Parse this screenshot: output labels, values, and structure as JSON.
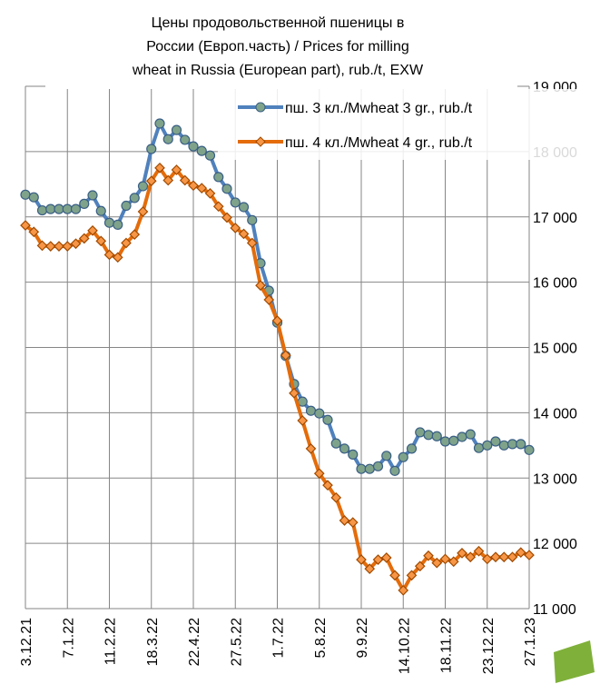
{
  "chart_data": {
    "type": "line",
    "title": [
      "Цены продовольственной пшеницы в",
      "России (Европ.часть) / Prices for milling",
      "wheat in Russia (European part), rub./t, EXW"
    ],
    "categories": [
      "3.12.21",
      null,
      null,
      null,
      null,
      "7.1.22",
      null,
      null,
      null,
      null,
      "11.2.22",
      null,
      null,
      null,
      null,
      "18.3.22",
      null,
      null,
      null,
      null,
      "22.4.22",
      null,
      null,
      null,
      null,
      "27.5.22",
      null,
      null,
      null,
      null,
      "1.7.22",
      null,
      null,
      null,
      null,
      "5.8.22",
      null,
      null,
      null,
      null,
      "9.9.22",
      null,
      null,
      null,
      null,
      "14.10.22",
      null,
      null,
      null,
      null,
      "18.11.22",
      null,
      null,
      null,
      null,
      "23.12.22",
      null,
      null,
      null,
      null,
      "27.1.23"
    ],
    "series": [
      {
        "name": "пш. 3 кл./Mwheat 3 gr., rub./t",
        "color": "#4f81bd",
        "marker": "circle",
        "marker_color": "#7fa38a",
        "values": [
          17340,
          17300,
          17100,
          17120,
          17120,
          17120,
          17120,
          17200,
          17330,
          17090,
          16910,
          16880,
          17170,
          17290,
          17470,
          18040,
          18430,
          18190,
          18330,
          18180,
          18080,
          18010,
          17940,
          17610,
          17430,
          17220,
          17150,
          16950,
          16290,
          15870,
          15380,
          14870,
          14440,
          14170,
          14030,
          13990,
          13890,
          13530,
          13450,
          13360,
          13140,
          13140,
          13180,
          13340,
          13110,
          13320,
          13450,
          13700,
          13660,
          13640,
          13560,
          13570,
          13630,
          13670,
          13460,
          13500,
          13560,
          13500,
          13520,
          13520,
          13430
        ]
      },
      {
        "name": "пш. 4 кл./Mwheat 4 gr., rub./t",
        "color": "#e46c0a",
        "marker": "diamond",
        "marker_color": "#f79646",
        "values": [
          16870,
          16770,
          16560,
          16550,
          16550,
          16550,
          16590,
          16670,
          16790,
          16630,
          16420,
          16380,
          16600,
          16730,
          17080,
          17550,
          17750,
          17560,
          17720,
          17560,
          17480,
          17440,
          17360,
          17160,
          16990,
          16830,
          16740,
          16600,
          15950,
          15730,
          15410,
          14880,
          14300,
          13880,
          13450,
          13070,
          12890,
          12700,
          12350,
          12320,
          11750,
          11610,
          11750,
          11780,
          11510,
          11280,
          11510,
          11650,
          11810,
          11700,
          11760,
          11720,
          11850,
          11790,
          11880,
          11760,
          11790,
          11790,
          11790,
          11860,
          11820
        ]
      }
    ],
    "ylim": [
      11000,
      19000
    ],
    "yticks": [
      {
        "value": 11000,
        "label": "11 000"
      },
      {
        "value": 12000,
        "label": "12 000"
      },
      {
        "value": 13000,
        "label": "13 000"
      },
      {
        "value": 14000,
        "label": "14 000"
      },
      {
        "value": 15000,
        "label": "15 000"
      },
      {
        "value": 16000,
        "label": "16 000"
      },
      {
        "value": 17000,
        "label": "17 000"
      },
      {
        "value": 18000,
        "label": "18 000"
      },
      {
        "value": 19000,
        "label": "19 000"
      }
    ],
    "grid": true,
    "legend": "top-right"
  }
}
